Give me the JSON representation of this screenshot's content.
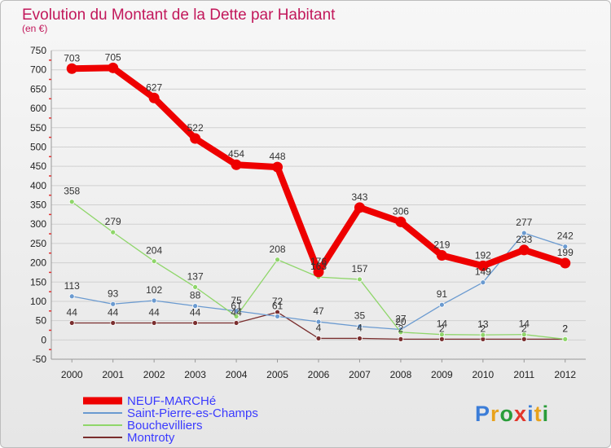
{
  "chart_data": {
    "type": "line",
    "title": "Evolution du Montant de la Dette par Habitant",
    "subtitle": "(en €)",
    "xlabel": "",
    "ylabel": "",
    "ylim": [
      -50,
      750
    ],
    "yticks": [
      -50,
      0,
      50,
      100,
      150,
      200,
      250,
      300,
      350,
      400,
      450,
      500,
      550,
      600,
      650,
      700,
      750
    ],
    "categories": [
      "2000",
      "2001",
      "2002",
      "2003",
      "2004",
      "2005",
      "2006",
      "2007",
      "2008",
      "2009",
      "2010",
      "2011",
      "2012"
    ],
    "grid": "horizontal",
    "legend_position": "bottom-left",
    "series": [
      {
        "name": "NEUF-MARCHé",
        "color": "#ee0000",
        "values": [
          703,
          705,
          627,
          522,
          454,
          448,
          176,
          343,
          306,
          219,
          192,
          233,
          199
        ]
      },
      {
        "name": "Saint-Pierre-es-Champs",
        "color": "#6a9ad0",
        "values": [
          113,
          93,
          102,
          88,
          75,
          61,
          47,
          35,
          27,
          91,
          149,
          277,
          242
        ]
      },
      {
        "name": "Bouchevilliers",
        "color": "#8fd66a",
        "values": [
          358,
          279,
          204,
          137,
          61,
          208,
          163,
          157,
          20,
          14,
          13,
          14,
          2
        ]
      },
      {
        "name": "Montroty",
        "color": "#7a2e2e",
        "values": [
          44,
          44,
          44,
          44,
          44,
          72,
          4,
          4,
          2,
          2,
          2,
          2,
          2
        ]
      }
    ]
  },
  "brand": {
    "text": "Proxiti"
  }
}
